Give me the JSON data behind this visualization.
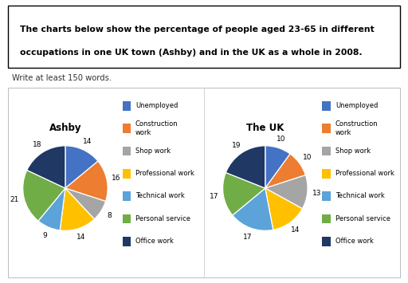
{
  "title_box_line1": "The charts below show the percentage of people aged 23-65 in different",
  "title_box_line2": "occupations in one UK town (Ashby) and in the UK as a whole in 2008.",
  "subtitle": "Write at least 150 words.",
  "chart1_title": "Ashby",
  "chart2_title": "The UK",
  "categories": [
    "Unemployed",
    "Construction\nwork",
    "Shop work",
    "Professional work",
    "Technical work",
    "Personal service",
    "Office work"
  ],
  "ashby_values": [
    14,
    16,
    8,
    14,
    9,
    21,
    18
  ],
  "uk_values": [
    10,
    10,
    13,
    14,
    17,
    17,
    19
  ],
  "colors": [
    "#4472C4",
    "#ED7D31",
    "#A5A5A5",
    "#FFC000",
    "#5BA3D9",
    "#70AD47",
    "#1F3864"
  ],
  "background": "#FFFFFF"
}
